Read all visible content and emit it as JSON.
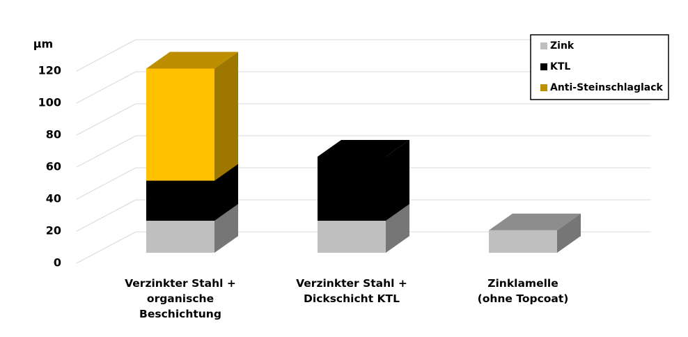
{
  "chart_data": {
    "type": "bar3d_stacked",
    "ylabel": "µm",
    "categories": [
      "Verzinkter Stahl +\norganische\nBeschichtung",
      "Verzinkter Stahl +\nDickschicht KTL",
      "Zinklamelle\n(ohne Topcoat)"
    ],
    "series": [
      {
        "name": "Zink",
        "color": "#bfbfbf",
        "values": [
          20,
          20,
          14
        ]
      },
      {
        "name": "KTL",
        "color": "#000000",
        "values": [
          25,
          40,
          0
        ]
      },
      {
        "name": "Anti-Steinschlaglack",
        "color": "#ffc000",
        "values": [
          70,
          0,
          0
        ]
      }
    ],
    "legend_colors": [
      "#bfbfbf",
      "#000000",
      "#bf9000"
    ],
    "ylim": [
      0,
      120
    ],
    "yticks": [
      0,
      20,
      40,
      60,
      80,
      100,
      120
    ],
    "grid": true,
    "legend": "upper right"
  }
}
